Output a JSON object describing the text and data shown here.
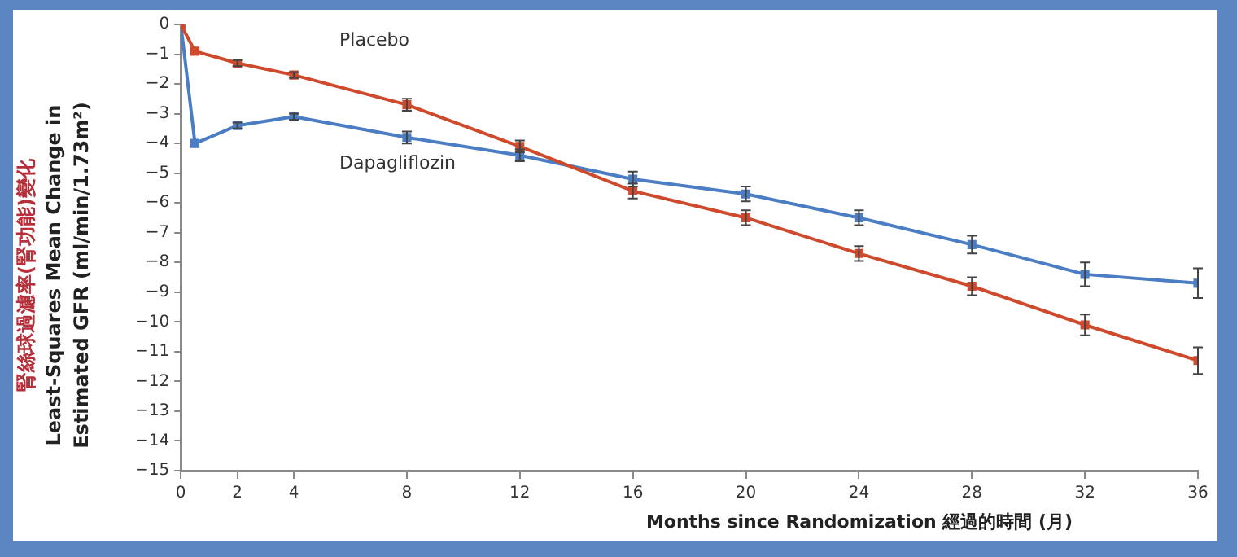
{
  "chart_data": {
    "type": "line",
    "xlabel": "Months since Randomization 經過的時間 (月)",
    "ylabel": "腎絲球過濾率(腎功能)變化\nLeast-Squares Mean Change in\nEstimated GFR (ml/min/1.73m²)",
    "x": [
      0,
      0.5,
      2,
      4,
      8,
      12,
      16,
      20,
      24,
      28,
      32,
      36
    ],
    "series": [
      {
        "name": "Placebo",
        "color": "#cf4a2c",
        "values": [
          0,
          -0.9,
          -1.3,
          -1.7,
          -2.7,
          -4.1,
          -5.6,
          -6.5,
          -7.7,
          -8.8,
          -10.1,
          -11.3
        ],
        "errors": [
          null,
          null,
          0.1,
          0.1,
          0.2,
          0.2,
          0.25,
          0.25,
          0.25,
          0.3,
          0.35,
          0.45
        ]
      },
      {
        "name": "Dapagliflozin",
        "color": "#4a7dc4",
        "values": [
          0,
          -4.0,
          -3.4,
          -3.1,
          -3.8,
          -4.4,
          -5.2,
          -5.7,
          -6.5,
          -7.4,
          -8.4,
          -8.7
        ],
        "errors": [
          null,
          null,
          0.1,
          0.1,
          0.2,
          0.2,
          0.25,
          0.25,
          0.25,
          0.3,
          0.4,
          0.5
        ]
      }
    ],
    "xlim": [
      0,
      36
    ],
    "xticks": [
      0,
      2,
      4,
      8,
      12,
      16,
      20,
      24,
      28,
      32,
      36
    ],
    "ylim": [
      -15,
      0
    ],
    "yticks": [
      0,
      -1,
      -2,
      -3,
      -4,
      -5,
      -6,
      -7,
      -8,
      -9,
      -10,
      -11,
      -12,
      -13,
      -14,
      -15
    ],
    "grid": false,
    "legend": false,
    "marker": "square",
    "line_style": "solid"
  }
}
